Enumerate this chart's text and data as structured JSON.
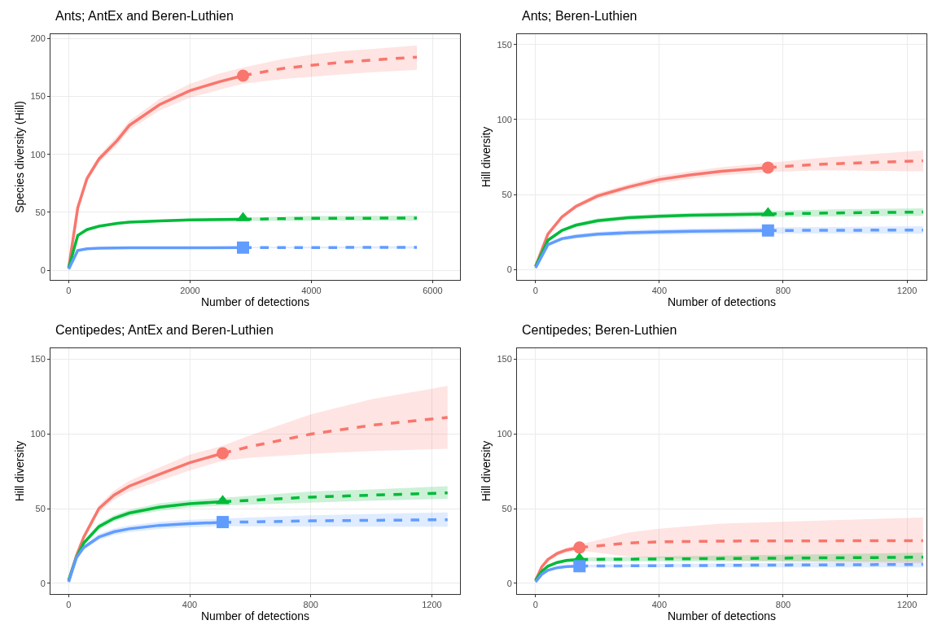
{
  "chart_data": [
    {
      "type": "line",
      "title": "Ants; AntEx and Beren-Luthien",
      "xlabel": "Number of detections",
      "ylabel": "Species diversity (Hill)",
      "xlim": [
        -300,
        6450
      ],
      "xticks": [
        0,
        2000,
        4000,
        6000
      ],
      "ylim": [
        -8.4,
        203.8
      ],
      "yticks": [
        0,
        50,
        100,
        150,
        200
      ],
      "grid": true,
      "series": [
        {
          "type": "line",
          "line_style": "solid",
          "marker": "none",
          "color": "#f8766d",
          "x": [
            0,
            150,
            300,
            500,
            800,
            1000,
            1500,
            2000,
            2500,
            2874
          ],
          "values": [
            2,
            54,
            79,
            96,
            112,
            125,
            143,
            155,
            163,
            168
          ],
          "lower": [
            2,
            52,
            76,
            93,
            108,
            121,
            138,
            149,
            156,
            161
          ],
          "upper": [
            2,
            56,
            82,
            99,
            116,
            129,
            148,
            161,
            170,
            175
          ]
        },
        {
          "type": "line",
          "line_style": "dashed",
          "marker": "none",
          "color": "#f8766d",
          "x": [
            2874,
            3500,
            4000,
            4500,
            5000,
            5740
          ],
          "values": [
            168,
            174,
            177,
            179.5,
            181.5,
            184
          ],
          "lower": [
            161,
            165,
            167,
            169,
            171,
            173
          ],
          "upper": [
            175,
            182,
            186,
            189,
            191,
            194
          ]
        },
        {
          "type": "scatter",
          "marker": "circle",
          "color": "#f8766d",
          "x": [
            2874
          ],
          "values": [
            168
          ]
        },
        {
          "type": "line",
          "line_style": "solid",
          "marker": "none",
          "color": "#00ba38",
          "x": [
            0,
            150,
            300,
            500,
            800,
            1000,
            1500,
            2000,
            2874
          ],
          "values": [
            2,
            30,
            35,
            38,
            40.5,
            41.5,
            42.5,
            43.5,
            44
          ],
          "lower": [
            2,
            29,
            34,
            37,
            39.5,
            40.5,
            41.5,
            42.5,
            42.5
          ],
          "upper": [
            2,
            31,
            36,
            39,
            41.5,
            42.5,
            43.5,
            44.5,
            45.5
          ]
        },
        {
          "type": "line",
          "line_style": "dashed",
          "marker": "none",
          "color": "#00ba38",
          "x": [
            2874,
            4000,
            5740
          ],
          "values": [
            44,
            44.8,
            45
          ],
          "lower": [
            42.5,
            42.8,
            42.8
          ],
          "upper": [
            45.5,
            46.8,
            47.2
          ]
        },
        {
          "type": "scatter",
          "marker": "triangle",
          "color": "#00ba38",
          "x": [
            2874
          ],
          "values": [
            45
          ]
        },
        {
          "type": "line",
          "line_style": "solid",
          "marker": "none",
          "color": "#619cff",
          "x": [
            0,
            150,
            300,
            500,
            1000,
            2874
          ],
          "values": [
            1,
            17,
            18.5,
            19,
            19.3,
            19.5
          ]
        },
        {
          "type": "line",
          "line_style": "dashed",
          "marker": "none",
          "color": "#619cff",
          "x": [
            2874,
            5740
          ],
          "values": [
            19.5,
            19.7
          ],
          "lower": [
            19,
            18.7
          ],
          "upper": [
            20,
            20.7
          ]
        },
        {
          "type": "scatter",
          "marker": "square",
          "color": "#619cff",
          "x": [
            2874
          ],
          "values": [
            19.5
          ]
        }
      ]
    },
    {
      "type": "line",
      "title": "Ants; Beren-Luthien",
      "xlabel": "Number of detections",
      "ylabel": "Hill diversity",
      "xlim": [
        -60,
        1263
      ],
      "xticks": [
        0,
        400,
        800,
        1200
      ],
      "ylim": [
        -7,
        157
      ],
      "yticks": [
        0,
        50,
        100,
        150
      ],
      "grid": true,
      "series": [
        {
          "type": "line",
          "line_style": "solid",
          "marker": "none",
          "color": "#f8766d",
          "x": [
            0,
            40,
            85,
            130,
            200,
            300,
            400,
            500,
            600,
            751
          ],
          "values": [
            2,
            23.6,
            35,
            42,
            49,
            55,
            60,
            63,
            65.5,
            68
          ],
          "lower": [
            2,
            22.6,
            33.5,
            40.5,
            47,
            53,
            57.5,
            60.5,
            62.8,
            65
          ],
          "upper": [
            2,
            24.6,
            36.5,
            43.5,
            51,
            57,
            62.5,
            65.5,
            68.2,
            71
          ]
        },
        {
          "type": "line",
          "line_style": "dashed",
          "marker": "none",
          "color": "#f8766d",
          "x": [
            751,
            900,
            1000,
            1100,
            1252
          ],
          "values": [
            68,
            70,
            70.8,
            71.5,
            72.5
          ],
          "lower": [
            65,
            66,
            66,
            65.8,
            65.5
          ],
          "upper": [
            71,
            74,
            75.6,
            77.2,
            79.3
          ]
        },
        {
          "type": "scatter",
          "marker": "circle",
          "color": "#f8766d",
          "x": [
            751
          ],
          "values": [
            68
          ]
        },
        {
          "type": "line",
          "line_style": "solid",
          "marker": "none",
          "color": "#00ba38",
          "x": [
            0,
            40,
            85,
            130,
            200,
            300,
            400,
            500,
            751
          ],
          "values": [
            2,
            19.5,
            26,
            29.5,
            32.5,
            34.5,
            35.5,
            36.2,
            37
          ],
          "lower": [
            2,
            18.5,
            24.8,
            28.2,
            31,
            33,
            34,
            34.7,
            35
          ],
          "upper": [
            2,
            20.5,
            27.2,
            30.8,
            34,
            36,
            37,
            37.7,
            39
          ]
        },
        {
          "type": "line",
          "line_style": "dashed",
          "marker": "none",
          "color": "#00ba38",
          "x": [
            751,
            1000,
            1252
          ],
          "values": [
            37,
            37.8,
            38.3
          ],
          "lower": [
            35,
            35.4,
            35.8
          ],
          "upper": [
            39,
            40.2,
            40.8
          ]
        },
        {
          "type": "scatter",
          "marker": "triangle",
          "color": "#00ba38",
          "x": [
            751
          ],
          "values": [
            37.5
          ]
        },
        {
          "type": "line",
          "line_style": "solid",
          "marker": "none",
          "color": "#619cff",
          "x": [
            0,
            40,
            85,
            130,
            200,
            300,
            400,
            500,
            751
          ],
          "values": [
            1,
            16.5,
            20.5,
            22,
            23.5,
            24.5,
            25,
            25.4,
            26
          ],
          "lower": [
            1,
            15.5,
            19.2,
            20.5,
            22,
            22.8,
            23.2,
            23.6,
            24
          ],
          "upper": [
            1,
            17.5,
            21.8,
            23.5,
            25,
            26.2,
            26.8,
            27.2,
            28
          ]
        },
        {
          "type": "line",
          "line_style": "dashed",
          "marker": "none",
          "color": "#619cff",
          "x": [
            751,
            1252
          ],
          "values": [
            26,
            26.3
          ],
          "lower": [
            24,
            23.8
          ],
          "upper": [
            28,
            28.8
          ]
        },
        {
          "type": "scatter",
          "marker": "square",
          "color": "#619cff",
          "x": [
            751
          ],
          "values": [
            26
          ]
        }
      ]
    },
    {
      "type": "line",
      "title": "Centipedes; AntEx and Beren-Luthien",
      "xlabel": "Number of detections",
      "ylabel": "Hill diversity",
      "xlim": [
        -60,
        1293
      ],
      "xticks": [
        0,
        400,
        800,
        1200
      ],
      "ylim": [
        -7.1,
        157.2
      ],
      "yticks": [
        0,
        50,
        100,
        150
      ],
      "grid": true,
      "series": [
        {
          "type": "line",
          "line_style": "solid",
          "marker": "none",
          "color": "#f8766d",
          "x": [
            0,
            25,
            50,
            100,
            150,
            200,
            300,
            400,
            509
          ],
          "values": [
            2,
            18,
            31,
            50,
            59,
            65,
            73,
            80.7,
            87
          ],
          "lower": [
            2,
            17,
            29.5,
            47.5,
            56,
            61.5,
            68.5,
            75.5,
            82
          ],
          "upper": [
            2,
            19,
            32.5,
            52.5,
            62,
            68.5,
            77.5,
            86,
            92
          ]
        },
        {
          "type": "line",
          "line_style": "dashed",
          "marker": "none",
          "color": "#f8766d",
          "x": [
            509,
            600,
            800,
            1000,
            1252
          ],
          "values": [
            87,
            91.5,
            99.8,
            105.7,
            111
          ],
          "lower": [
            82,
            84,
            86.6,
            88.5,
            90
          ],
          "upper": [
            92,
            99,
            113,
            123,
            132
          ]
        },
        {
          "type": "scatter",
          "marker": "circle",
          "color": "#f8766d",
          "x": [
            509
          ],
          "values": [
            87
          ]
        },
        {
          "type": "line",
          "line_style": "solid",
          "marker": "none",
          "color": "#00ba38",
          "x": [
            0,
            25,
            50,
            100,
            150,
            200,
            300,
            400,
            509
          ],
          "values": [
            2,
            17,
            27,
            38,
            43.5,
            47,
            51,
            53.3,
            54.6
          ],
          "lower": [
            2,
            16,
            25.5,
            36,
            41.5,
            44.8,
            48.5,
            50.8,
            52
          ],
          "upper": [
            2,
            18,
            28.5,
            40,
            45.5,
            49.2,
            53.5,
            55.8,
            57.2
          ]
        },
        {
          "type": "line",
          "line_style": "dashed",
          "marker": "none",
          "color": "#00ba38",
          "x": [
            509,
            800,
            1000,
            1252
          ],
          "values": [
            54.6,
            57.7,
            59,
            60.5
          ],
          "lower": [
            52,
            54,
            55.3,
            56.5
          ],
          "upper": [
            57.2,
            61.4,
            62.8,
            65
          ]
        },
        {
          "type": "scatter",
          "marker": "triangle",
          "color": "#00ba38",
          "x": [
            509
          ],
          "values": [
            55
          ]
        },
        {
          "type": "line",
          "line_style": "solid",
          "marker": "none",
          "color": "#619cff",
          "x": [
            0,
            25,
            50,
            100,
            150,
            200,
            300,
            400,
            509
          ],
          "values": [
            1,
            17,
            24,
            31,
            34.5,
            36.5,
            38.8,
            40,
            40.8
          ],
          "lower": [
            1,
            16,
            22.5,
            29,
            32.3,
            34.2,
            36.4,
            37.5,
            38.2
          ],
          "upper": [
            1,
            18,
            25.5,
            33,
            36.7,
            38.8,
            41.2,
            42.5,
            43.4
          ]
        },
        {
          "type": "line",
          "line_style": "dashed",
          "marker": "none",
          "color": "#619cff",
          "x": [
            509,
            800,
            1252
          ],
          "values": [
            40.8,
            41.8,
            42.6
          ],
          "lower": [
            38.2,
            38,
            37.9
          ],
          "upper": [
            43.4,
            45.6,
            47.5
          ]
        },
        {
          "type": "scatter",
          "marker": "square",
          "color": "#619cff",
          "x": [
            509
          ],
          "values": [
            41
          ]
        }
      ]
    },
    {
      "type": "line",
      "title": "Centipedes; Beren-Luthien",
      "xlabel": "Number of detections",
      "ylabel": "Hill diversity",
      "xlim": [
        -60,
        1263
      ],
      "xticks": [
        0,
        400,
        800,
        1200
      ],
      "ylim": [
        -7.1,
        157.2
      ],
      "yticks": [
        0,
        50,
        100,
        150
      ],
      "grid": true,
      "series": [
        {
          "type": "line",
          "line_style": "solid",
          "marker": "none",
          "color": "#f8766d",
          "x": [
            0,
            20,
            40,
            70,
            100,
            142
          ],
          "values": [
            2,
            11,
            16,
            20,
            22.3,
            24
          ],
          "lower": [
            2,
            10,
            14.8,
            18.5,
            20.5,
            22
          ],
          "upper": [
            2,
            12,
            17.2,
            21.5,
            24.1,
            26
          ]
        },
        {
          "type": "line",
          "line_style": "dashed",
          "marker": "none",
          "color": "#f8766d",
          "x": [
            142,
            300,
            400,
            600,
            1252
          ],
          "values": [
            24,
            27,
            27.8,
            28.3,
            28.6
          ],
          "lower": [
            22,
            18,
            17,
            15.5,
            13.5
          ],
          "upper": [
            26,
            34,
            36.5,
            40,
            44
          ]
        },
        {
          "type": "scatter",
          "marker": "circle",
          "color": "#f8766d",
          "x": [
            142
          ],
          "values": [
            24
          ]
        },
        {
          "type": "line",
          "line_style": "solid",
          "marker": "none",
          "color": "#00ba38",
          "x": [
            0,
            20,
            40,
            70,
            100,
            142
          ],
          "values": [
            2,
            8,
            11.5,
            14,
            15.3,
            16
          ],
          "lower": [
            2,
            7.3,
            10.6,
            13,
            14.2,
            14.8
          ],
          "upper": [
            2,
            8.7,
            12.4,
            15,
            16.4,
            17.2
          ]
        },
        {
          "type": "line",
          "line_style": "dashed",
          "marker": "none",
          "color": "#00ba38",
          "x": [
            142,
            1252
          ],
          "values": [
            16,
            17.5
          ],
          "lower": [
            14.8,
            14.5
          ],
          "upper": [
            17.2,
            20.5
          ]
        },
        {
          "type": "scatter",
          "marker": "triangle",
          "color": "#00ba38",
          "x": [
            142
          ],
          "values": [
            16.5
          ]
        },
        {
          "type": "line",
          "line_style": "solid",
          "marker": "none",
          "color": "#619cff",
          "x": [
            0,
            20,
            40,
            70,
            100,
            142
          ],
          "values": [
            1,
            6,
            8.8,
            10.5,
            11.2,
            11.6
          ]
        },
        {
          "type": "line",
          "line_style": "dashed",
          "marker": "none",
          "color": "#619cff",
          "x": [
            142,
            1252
          ],
          "values": [
            11.6,
            12.7
          ],
          "lower": [
            10.7,
            10.7
          ],
          "upper": [
            12.5,
            14.7
          ]
        },
        {
          "type": "scatter",
          "marker": "square",
          "color": "#619cff",
          "x": [
            142
          ],
          "values": [
            11.5
          ]
        }
      ]
    }
  ]
}
